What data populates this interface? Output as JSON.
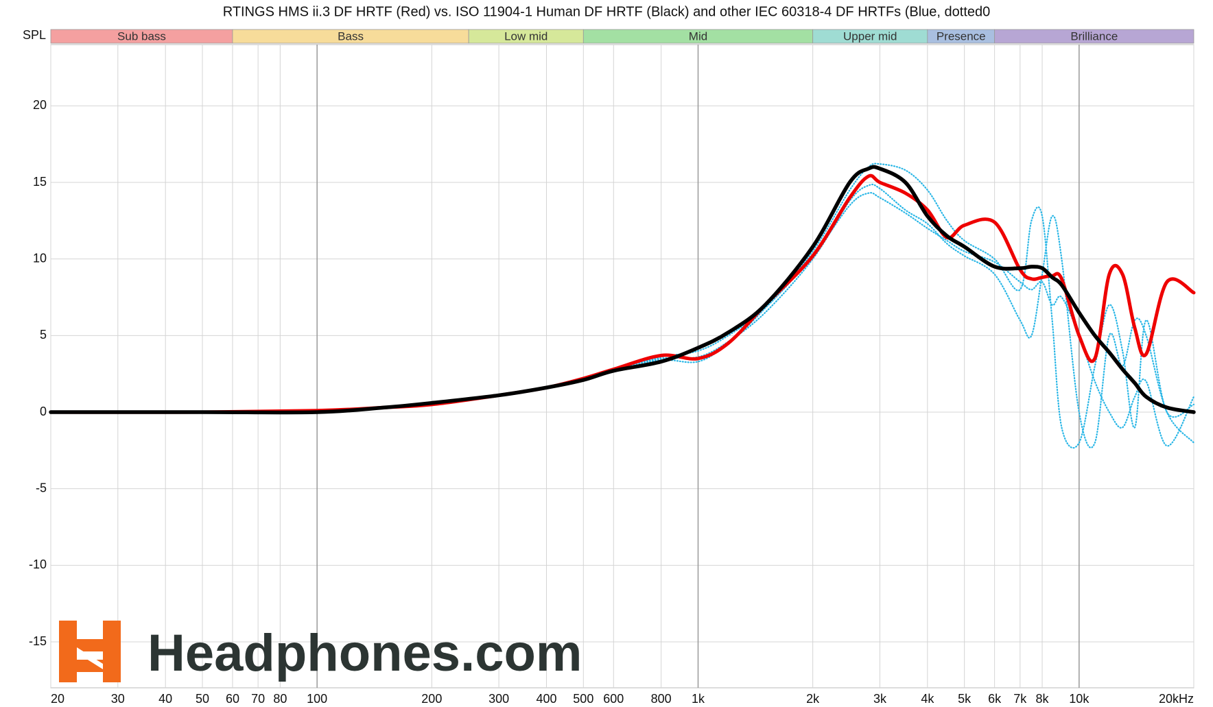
{
  "chart_data": {
    "type": "line",
    "title": "RTINGS HMS ii.3 DF HRTF (Red) vs. ISO 11904-1 Human DF HRTF (Black) and other IEC 60318-4 DF HRTFs (Blue, dotted0",
    "y_label": "SPL",
    "watermark": "Headphones.com",
    "log_x": true,
    "grid": true,
    "xlim": [
      20,
      20000
    ],
    "ylim": [
      -18,
      24
    ],
    "yticks": [
      -15,
      -10,
      -5,
      0,
      5,
      10,
      15,
      20
    ],
    "xticks": [
      20,
      30,
      40,
      50,
      60,
      70,
      80,
      100,
      200,
      300,
      400,
      500,
      600,
      800,
      {
        "value": 1000,
        "label": "1k"
      },
      {
        "value": 2000,
        "label": "2k"
      },
      {
        "value": 3000,
        "label": "3k"
      },
      {
        "value": 4000,
        "label": "4k"
      },
      {
        "value": 5000,
        "label": "5k"
      },
      {
        "value": 6000,
        "label": "6k"
      },
      {
        "value": 7000,
        "label": "7k"
      },
      {
        "value": 8000,
        "label": "8k"
      },
      {
        "value": 10000,
        "label": "10k"
      },
      {
        "value": 20000,
        "label": "20kHz"
      }
    ],
    "bands": [
      {
        "label": "Sub bass",
        "from": 20,
        "to": 60,
        "color": "#f4a0a0"
      },
      {
        "label": "Bass",
        "from": 60,
        "to": 250,
        "color": "#f7dc9a"
      },
      {
        "label": "Low mid",
        "from": 250,
        "to": 500,
        "color": "#d6e89a"
      },
      {
        "label": "Mid",
        "from": 500,
        "to": 2000,
        "color": "#a3e0a3"
      },
      {
        "label": "Upper mid",
        "from": 2000,
        "to": 4000,
        "color": "#9fdcd3"
      },
      {
        "label": "Presence",
        "from": 4000,
        "to": 6000,
        "color": "#a9bfe0"
      },
      {
        "label": "Brilliance",
        "from": 6000,
        "to": 20000,
        "color": "#b7a6d4"
      }
    ],
    "x": [
      20,
      50,
      100,
      150,
      200,
      300,
      400,
      500,
      600,
      800,
      1000,
      1200,
      1500,
      2000,
      2500,
      2800,
      3000,
      3500,
      4000,
      4500,
      5000,
      6000,
      7000,
      7500,
      8000,
      8500,
      9000,
      10000,
      11000,
      12000,
      13000,
      14000,
      15000,
      17000,
      20000
    ],
    "series": [
      {
        "color": "#29b6e6",
        "dotted": true,
        "width": 2.2,
        "values": [
          0,
          0,
          0,
          0.3,
          0.6,
          1.1,
          1.6,
          2.2,
          2.8,
          3.4,
          3.3,
          4.5,
          6.8,
          10.5,
          14.5,
          16,
          16.2,
          15.8,
          14.5,
          12.5,
          11.2,
          10,
          8,
          12.5,
          12.8,
          6,
          -1,
          -2,
          3,
          7,
          4,
          -1,
          6,
          0,
          0.5
        ]
      },
      {
        "color": "#29b6e6",
        "dotted": true,
        "width": 2.2,
        "values": [
          0,
          0,
          0,
          0.3,
          0.6,
          1.1,
          1.6,
          2.2,
          2.8,
          3.5,
          3.6,
          4.6,
          6.5,
          10,
          13.8,
          14.8,
          14.6,
          13.2,
          12.3,
          11,
          10.2,
          9,
          6,
          5,
          9,
          12.8,
          10,
          0,
          -2,
          5,
          3,
          6,
          5,
          0,
          -2
        ]
      },
      {
        "color": "#29b6e6",
        "dotted": true,
        "width": 2.2,
        "values": [
          0,
          0,
          0,
          0.3,
          0.6,
          1.1,
          1.6,
          2.2,
          2.8,
          3.6,
          4,
          5,
          6.8,
          10.2,
          13.5,
          14.3,
          14,
          13,
          12,
          11.2,
          10.5,
          9.8,
          8.5,
          8,
          8.5,
          7,
          7.5,
          5,
          2,
          0,
          -1,
          1,
          2,
          -2.2,
          1
        ]
      },
      {
        "color": "#ee0000",
        "dotted": false,
        "width": 5,
        "values": [
          0,
          0,
          0.1,
          0.3,
          0.5,
          1.1,
          1.6,
          2.2,
          2.8,
          3.7,
          3.5,
          4.5,
          7,
          10.2,
          14,
          15.4,
          15,
          14.3,
          13.2,
          11.4,
          12.2,
          12.4,
          9.3,
          8.7,
          8.8,
          8.9,
          8.7,
          5,
          3.5,
          9,
          9,
          5.5,
          3.8,
          8.5,
          7.8
        ]
      },
      {
        "color": "#000000",
        "dotted": false,
        "width": 5.5,
        "values": [
          0,
          0,
          0,
          0.3,
          0.6,
          1.1,
          1.6,
          2.1,
          2.7,
          3.3,
          4.2,
          5.2,
          7,
          10.8,
          15,
          15.9,
          15.9,
          15,
          12.8,
          11.5,
          10.8,
          9.5,
          9.4,
          9.5,
          9.4,
          8.8,
          8.3,
          6.5,
          5,
          3.9,
          2.8,
          1.9,
          1,
          0.3,
          0
        ]
      }
    ]
  }
}
